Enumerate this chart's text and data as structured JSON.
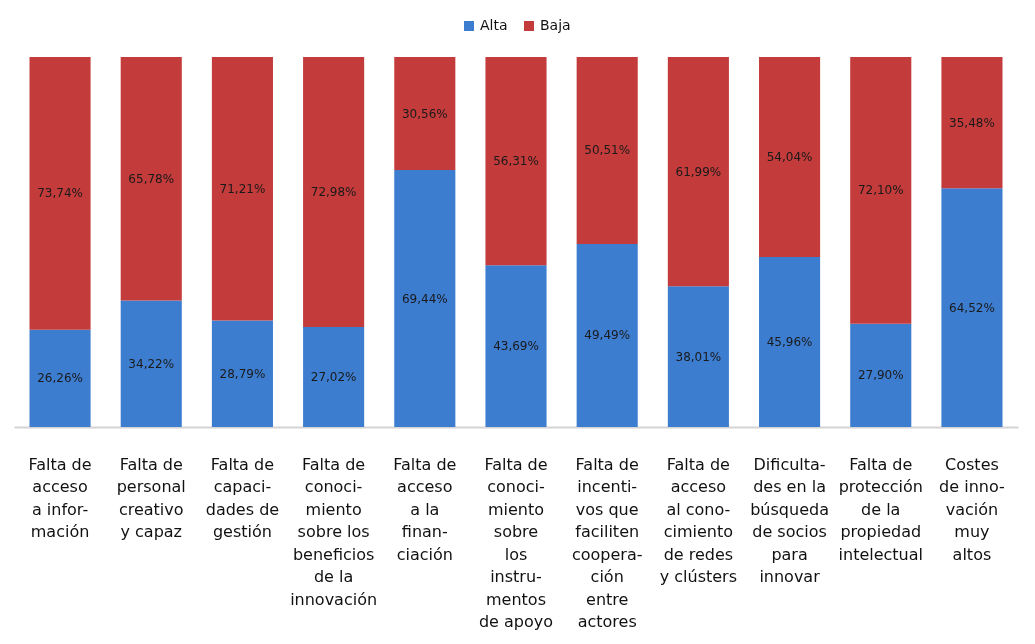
{
  "chart_data": {
    "type": "bar",
    "stacked": true,
    "legend": "top",
    "tick_labels": "x",
    "ylim": [
      0,
      100
    ],
    "categories": [
      "Falta de\nacceso\na infor-\nmación",
      "Falta de\npersonal\ncreativo\ny capaz",
      "Falta de\ncapaci-\ndades de\ngestión",
      "Falta de\nconoci-\nmiento\nsobre los\nbeneficios\nde la\ninnovación",
      "Falta de\nacceso\na la\nfinan-\nciación",
      "Falta de\nconoci-\nmiento\nsobre\nlos\ninstru-\nmentos\nde apoyo",
      "Falta de\nincenti-\nvos que\nfaciliten\ncoopera-\nción\nentre\nactores",
      "Falta de\nacceso\nal cono-\ncimiento\nde redes\ny clústers",
      "Dificulta-\ndes en la\nbúsqueda\nde socios\npara\ninnovar",
      "Falta de\nprotección\nde la\npropiedad\nintelectual",
      "Costes\nde inno-\nvación\nmuy\naltos"
    ],
    "series": [
      {
        "name": "Alta",
        "color": "#3d7dd0",
        "values": [
          26.26,
          34.22,
          28.79,
          27.02,
          69.44,
          43.69,
          49.49,
          38.01,
          45.96,
          27.9,
          64.52
        ],
        "value_labels": [
          "26,26%",
          "34,22%",
          "28,79%",
          "27,02%",
          "69,44%",
          "43,69%",
          "49,49%",
          "38,01%",
          "45,96%",
          "27,90%",
          "64,52%"
        ]
      },
      {
        "name": "Baja",
        "color": "#c33b3b",
        "values": [
          73.74,
          65.78,
          71.21,
          72.98,
          30.56,
          56.31,
          50.51,
          61.99,
          54.04,
          72.1,
          35.48
        ],
        "value_labels": [
          "73,74%",
          "65,78%",
          "71,21%",
          "72,98%",
          "30,56%",
          "56,31%",
          "50,51%",
          "61,99%",
          "54,04%",
          "72,10%",
          "35,48%"
        ]
      }
    ]
  }
}
